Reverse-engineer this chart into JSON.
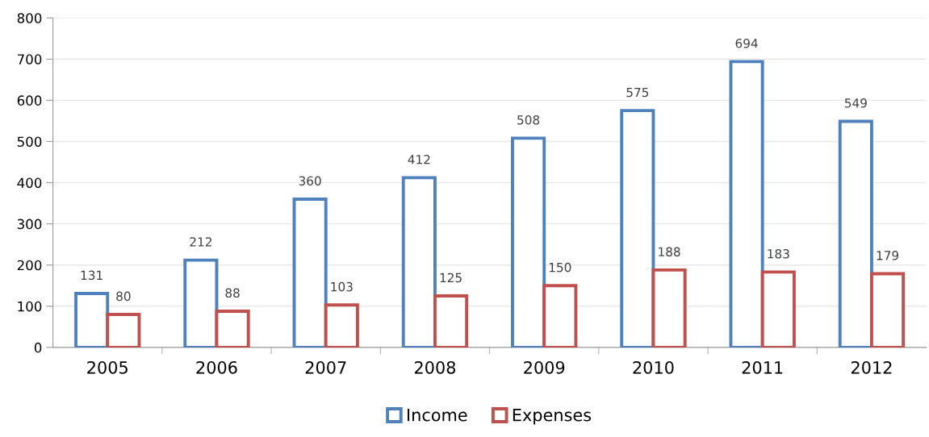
{
  "chart_data": {
    "type": "bar",
    "categories": [
      "2005",
      "2006",
      "2007",
      "2008",
      "2009",
      "2010",
      "2011",
      "2012"
    ],
    "series": [
      {
        "name": "Income",
        "color": "#4f81bd",
        "values": [
          131,
          212,
          360,
          412,
          508,
          575,
          694,
          549
        ]
      },
      {
        "name": "Expenses",
        "color": "#c0504d",
        "values": [
          80,
          88,
          103,
          125,
          150,
          188,
          183,
          179
        ]
      }
    ],
    "ylim": [
      0,
      800
    ],
    "yticks": [
      0,
      100,
      200,
      300,
      400,
      500,
      600,
      700,
      800
    ],
    "grid": "y",
    "legend": "bottom",
    "data_labels": true
  }
}
